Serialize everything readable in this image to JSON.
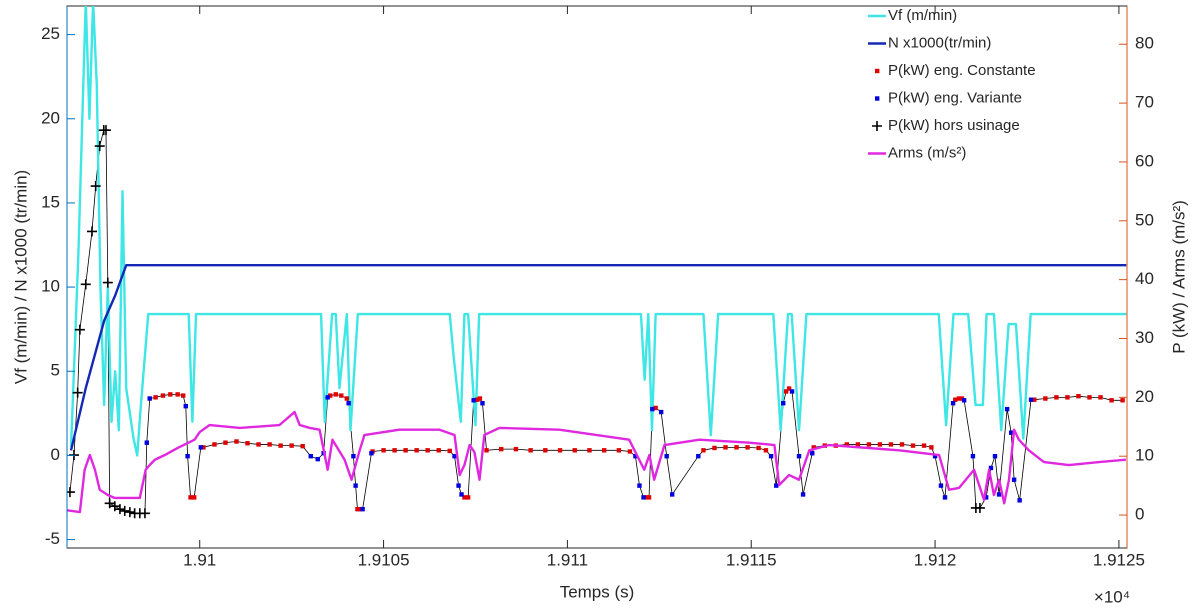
{
  "chart_data": {
    "type": "line",
    "xlabel": "Temps (s)",
    "x_multiplier": "×10⁴",
    "ylabel": "Vf (m/min) / N x1000 (tr/min)",
    "y2label": "P (kW) / Arms (m/s²)",
    "xlim": [
      1.909639,
      1.912522
    ],
    "xticks": [
      1.91,
      1.9105,
      1.911,
      1.9115,
      1.912,
      1.9125
    ],
    "ylim": [
      -5.5,
      26.7
    ],
    "yticks": [
      -5,
      0,
      5,
      10,
      15,
      20,
      25
    ],
    "y2lim": [
      -5.6,
      86.5
    ],
    "y2ticks": [
      0,
      10,
      20,
      30,
      40,
      50,
      60,
      70,
      80
    ],
    "y_color": "#0072bd",
    "y2_color": "#d95319",
    "legend": "northeast",
    "connector_color": "#000000",
    "series": [
      {
        "name": "Vf (m/min)",
        "color": "#3ee6e6",
        "marker": "line",
        "axis": "y",
        "x": [
          1.90965,
          1.90967,
          1.90969,
          1.9097,
          1.90971,
          1.90972,
          1.90973,
          1.90974,
          1.90975,
          1.90976,
          1.90977,
          1.90978,
          1.90979,
          1.9098,
          1.90982,
          1.90983,
          1.90984,
          1.90986,
          1.90997,
          1.90998,
          1.90999,
          1.91033,
          1.91034,
          1.91036,
          1.91037,
          1.91038,
          1.9104,
          1.91041,
          1.91043,
          1.91068,
          1.91069,
          1.91071,
          1.91072,
          1.91073,
          1.91075,
          1.91076,
          1.9112,
          1.91121,
          1.91122,
          1.91123,
          1.91124,
          1.91137,
          1.91139,
          1.91141,
          1.91156,
          1.91158,
          1.9116,
          1.91161,
          1.91163,
          1.91165,
          1.91201,
          1.91203,
          1.91205,
          1.91209,
          1.91211,
          1.91213,
          1.91214,
          1.91216,
          1.91218,
          1.9122,
          1.91222,
          1.91224,
          1.91226,
          1.91252
        ],
        "values": [
          0.5,
          12,
          27,
          20,
          27,
          22,
          10,
          3,
          10,
          2,
          5,
          1.5,
          15.7,
          4,
          1,
          0,
          3,
          8.4,
          8.4,
          2,
          8.4,
          8.4,
          2,
          8.4,
          8.4,
          4,
          8.4,
          1.5,
          8.4,
          8.4,
          6,
          2,
          8.4,
          8.4,
          1.8,
          8.4,
          8.4,
          4.5,
          8.4,
          1.5,
          8.4,
          8.4,
          1.2,
          8.4,
          8.4,
          1.5,
          8.4,
          8.4,
          1.5,
          8.4,
          8.4,
          1.8,
          8.4,
          8.4,
          3,
          3,
          8.4,
          8.4,
          1.5,
          7.8,
          7.8,
          1,
          8.4,
          8.4
        ]
      },
      {
        "name": "N x1000(tr/min)",
        "color": "#1428b4",
        "marker": "line",
        "axis": "y",
        "x": [
          1.90965,
          1.90969,
          1.90974,
          1.90977,
          1.9098,
          1.91252
        ],
        "values": [
          0.3,
          4,
          8,
          9.5,
          11.3,
          11.3
        ]
      },
      {
        "name": "P(kW) eng. Constante",
        "color": "#e00000",
        "marker": "dot",
        "axis": "y2",
        "x": [
          1.90988,
          1.9099,
          1.90992,
          1.90994,
          1.909955,
          1.909975,
          1.909985,
          1.91001,
          1.91004,
          1.91007,
          1.9101,
          1.91013,
          1.91016,
          1.91019,
          1.91022,
          1.91025,
          1.91028,
          1.910355,
          1.91037,
          1.910385,
          1.9104,
          1.910429,
          1.910435,
          1.91047,
          1.9105,
          1.91053,
          1.91056,
          1.91059,
          1.91062,
          1.91065,
          1.91068,
          1.91072,
          1.91073,
          1.910755,
          1.910762,
          1.91078,
          1.91082,
          1.91086,
          1.9109,
          1.91094,
          1.91098,
          1.91102,
          1.91106,
          1.9111,
          1.91114,
          1.91117,
          1.911215,
          1.911222,
          1.91124,
          1.91137,
          1.9114,
          1.91143,
          1.91146,
          1.91149,
          1.91152,
          1.91154,
          1.911595,
          1.911603,
          1.91167,
          1.9117,
          1.91173,
          1.91176,
          1.91179,
          1.91182,
          1.91185,
          1.91188,
          1.91191,
          1.91194,
          1.91197,
          1.91199,
          1.912055,
          1.912065,
          1.912073,
          1.91227,
          1.9123,
          1.91233,
          1.91236,
          1.91239,
          1.91242,
          1.91245,
          1.91248,
          1.91251
        ],
        "values": [
          20,
          20.3,
          20.5,
          20.5,
          20.3,
          3,
          3,
          11.5,
          12,
          12.3,
          12.5,
          12.2,
          12,
          12,
          11.8,
          11.8,
          11.7,
          20.3,
          20.5,
          20.3,
          19.8,
          1,
          1,
          10.8,
          11,
          11,
          11,
          11,
          11,
          11,
          10.9,
          3,
          3,
          19.6,
          19.8,
          11,
          11.2,
          11.2,
          11,
          11,
          11,
          11,
          11,
          11,
          11,
          10.8,
          3,
          3,
          18.2,
          11,
          11.4,
          11.5,
          11.5,
          11.5,
          11.4,
          11,
          21,
          21.5,
          11.5,
          11.8,
          11.8,
          12,
          12,
          12,
          12,
          12,
          12,
          11.8,
          11.8,
          11.5,
          19.6,
          19.8,
          19.8,
          19.6,
          19.8,
          20,
          20,
          20.2,
          20,
          20,
          19.5,
          19.5
        ]
      },
      {
        "name": "P(kW) eng. Variante",
        "color": "#0000e0",
        "marker": "dot",
        "axis": "y2",
        "x": [
          1.909856,
          1.909864,
          1.909962,
          1.909967,
          1.910003,
          1.910302,
          1.910321,
          1.910337,
          1.910348,
          1.910405,
          1.910418,
          1.910424,
          1.910443,
          1.910467,
          1.910693,
          1.910704,
          1.910712,
          1.910745,
          1.910769,
          1.911185,
          1.911196,
          1.911207,
          1.911231,
          1.911255,
          1.91127,
          1.911285,
          1.911356,
          1.911554,
          1.911568,
          1.911587,
          1.911611,
          1.91163,
          1.911641,
          1.911666,
          1.912,
          1.912016,
          1.912027,
          1.912049,
          1.912079,
          1.912103,
          1.912139,
          1.912152,
          1.912163,
          1.912174,
          1.912196,
          1.912207,
          1.912215,
          1.91223,
          1.912261
        ],
        "values": [
          12.3,
          19.8,
          18.5,
          10,
          11.5,
          10,
          9.5,
          10.5,
          20,
          19,
          10,
          5,
          1,
          10.5,
          10,
          5,
          3.5,
          19.5,
          19,
          10,
          5,
          3,
          18,
          17.5,
          10,
          3.5,
          10,
          10,
          5,
          19,
          21,
          10,
          3.5,
          10.5,
          10,
          5,
          3,
          19,
          19.5,
          10,
          3,
          8,
          10,
          3.5,
          18,
          14,
          6,
          2.5,
          19.6
        ]
      },
      {
        "name": "P(kW) hors usinage",
        "color": "#000000",
        "marker": "plus",
        "axis": "y2",
        "x": [
          1.909647,
          1.909658,
          1.909668,
          1.909674,
          1.90969,
          1.909707,
          1.909717,
          1.909728,
          1.909739,
          1.909745,
          1.90975,
          1.909755,
          1.909769,
          1.909783,
          1.909796,
          1.90981,
          1.909823,
          1.909837,
          1.909851,
          1.912111,
          1.912122
        ],
        "values": [
          3.9,
          10.2,
          20.8,
          31.5,
          39.2,
          48.2,
          55.9,
          62.7,
          65.4,
          65.4,
          39.5,
          2,
          1.5,
          1,
          0.7,
          0.5,
          0.3,
          0.3,
          0.3,
          1.2,
          1.2
        ]
      },
      {
        "name": "Arms (m/s²)",
        "color": "#e028e0",
        "marker": "line",
        "axis": "y2",
        "x": [
          1.909639,
          1.909674,
          1.909687,
          1.909701,
          1.909715,
          1.909728,
          1.90975,
          1.909769,
          1.909837,
          1.909853,
          1.909864,
          1.909878,
          1.909905,
          1.90994,
          1.909986,
          1.91,
          1.910027,
          1.910109,
          1.910217,
          1.910258,
          1.910272,
          1.910299,
          1.910326,
          1.910348,
          1.910361,
          1.910394,
          1.910413,
          1.910435,
          1.910448,
          1.910543,
          1.910652,
          1.910693,
          1.910707,
          1.91072,
          1.910734,
          1.910747,
          1.910761,
          1.910774,
          1.910815,
          1.910978,
          1.911168,
          1.911209,
          1.911223,
          1.911236,
          1.911264,
          1.911359,
          1.911495,
          1.911563,
          1.911576,
          1.911603,
          1.91163,
          1.911658,
          1.911712,
          1.911902,
          1.912011,
          1.912038,
          1.912065,
          1.912106,
          1.912133,
          1.912147,
          1.91216,
          1.912174,
          1.912188,
          1.912201,
          1.912215,
          1.912228,
          1.912255,
          1.912296,
          1.912364,
          1.912446,
          1.912519
        ],
        "values": [
          0.8,
          0.5,
          7.7,
          10.2,
          7.7,
          4.3,
          3.4,
          2.9,
          2.9,
          7.7,
          8.5,
          9.4,
          10.2,
          11.4,
          12.8,
          14.1,
          15.3,
          14.8,
          15.3,
          17.5,
          15.3,
          14.8,
          14.5,
          7.7,
          12.8,
          9.4,
          6,
          11,
          13.6,
          14.5,
          14.5,
          13.6,
          6.8,
          8.5,
          11.9,
          10.7,
          6,
          13.6,
          14.8,
          14.5,
          12.8,
          7.7,
          10.2,
          6,
          11.9,
          12.8,
          12.3,
          11.9,
          5.1,
          6.8,
          6,
          11,
          11.9,
          11,
          10.2,
          4.3,
          4.6,
          7.7,
          2.6,
          7.7,
          3.4,
          6,
          2,
          6,
          14.5,
          12.8,
          11,
          9,
          8.5,
          9,
          9.4
        ]
      }
    ]
  }
}
